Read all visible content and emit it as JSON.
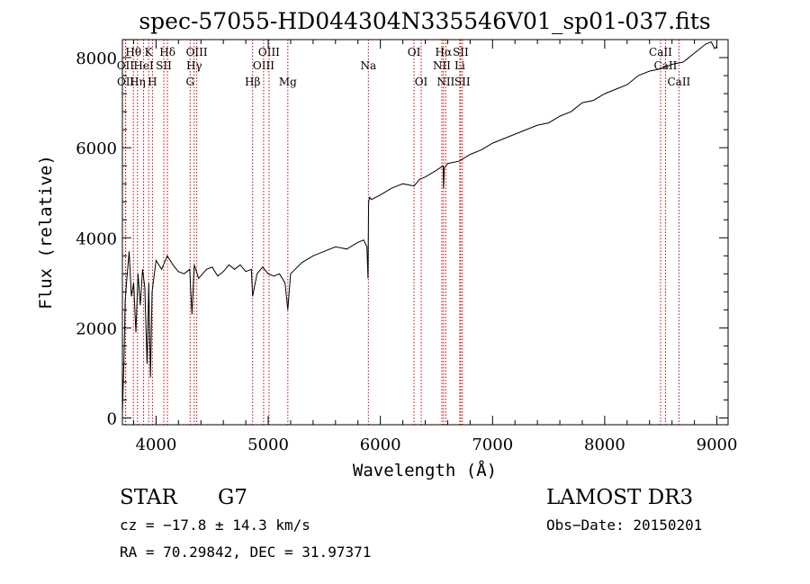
{
  "chart_data": {
    "type": "line",
    "title": "spec-57055-HD044304N335546V01_sp01-037.fits",
    "xlabel": "Wavelength (Å)",
    "ylabel": "Flux (relative)",
    "xlim": [
      3700,
      9100
    ],
    "ylim": [
      -150,
      8400
    ],
    "xticks": [
      4000,
      5000,
      6000,
      7000,
      8000,
      9000
    ],
    "yticks": [
      0,
      2000,
      4000,
      6000,
      8000
    ],
    "series": [
      {
        "name": "flux",
        "x": [
          3700,
          3715,
          3725,
          3740,
          3760,
          3780,
          3800,
          3820,
          3840,
          3860,
          3880,
          3900,
          3920,
          3935,
          3950,
          3965,
          3980,
          4000,
          4050,
          4100,
          4150,
          4200,
          4250,
          4300,
          4320,
          4340,
          4380,
          4450,
          4500,
          4550,
          4600,
          4650,
          4700,
          4750,
          4800,
          4850,
          4861,
          4900,
          4950,
          5000,
          5050,
          5100,
          5150,
          5175,
          5200,
          5300,
          5400,
          5500,
          5600,
          5700,
          5800,
          5850,
          5880,
          5890,
          5895,
          5905,
          5920,
          6000,
          6100,
          6200,
          6300,
          6350,
          6400,
          6500,
          6560,
          6563,
          6570,
          6600,
          6700,
          6800,
          6900,
          7000,
          7100,
          7200,
          7300,
          7400,
          7500,
          7600,
          7700,
          7800,
          7900,
          8000,
          8100,
          8200,
          8300,
          8400,
          8500,
          8600,
          8700,
          8800,
          8900,
          8950,
          8980,
          9000
        ],
        "values": [
          100,
          1400,
          2600,
          3100,
          3700,
          2700,
          3000,
          1900,
          3200,
          2500,
          3300,
          2900,
          1200,
          3000,
          900,
          2800,
          3100,
          3500,
          3300,
          3600,
          3400,
          3250,
          3200,
          3300,
          2300,
          3400,
          3100,
          3300,
          3350,
          3150,
          3250,
          3400,
          3300,
          3400,
          3250,
          3300,
          2700,
          3200,
          3350,
          3200,
          3150,
          3200,
          3000,
          2400,
          3200,
          3450,
          3600,
          3700,
          3800,
          3750,
          3900,
          3950,
          3800,
          3100,
          4800,
          4900,
          4850,
          4950,
          5100,
          5200,
          5150,
          5300,
          5350,
          5500,
          5600,
          5100,
          5550,
          5650,
          5700,
          5850,
          5950,
          6100,
          6200,
          6300,
          6400,
          6500,
          6550,
          6700,
          6800,
          7000,
          7050,
          7200,
          7300,
          7400,
          7600,
          7700,
          7750,
          7850,
          7900,
          8100,
          8300,
          8350,
          8200,
          8250
        ]
      }
    ],
    "lines": [
      {
        "name": "Hθ",
        "x": 3798,
        "row": 1
      },
      {
        "name": "OII",
        "x": 3727,
        "row": 2
      },
      {
        "name": "OII",
        "x": 3729,
        "row": 3
      },
      {
        "name": "Hη",
        "x": 3835,
        "row": 3
      },
      {
        "name": "HeI",
        "x": 3889,
        "row": 2
      },
      {
        "name": "K",
        "x": 3934,
        "row": 1
      },
      {
        "name": "SII",
        "x": 4069,
        "row": 2
      },
      {
        "name": "H",
        "x": 3968,
        "row": 3
      },
      {
        "name": "Hδ",
        "x": 4102,
        "row": 1
      },
      {
        "name": "OIII",
        "x": 4363,
        "row": 1
      },
      {
        "name": "Hγ",
        "x": 4340,
        "row": 2
      },
      {
        "name": "G",
        "x": 4304,
        "row": 3
      },
      {
        "name": "Hβ",
        "x": 4861,
        "row": 3
      },
      {
        "name": "OIII",
        "x": 5007,
        "row": 1
      },
      {
        "name": "OIII",
        "x": 4959,
        "row": 2
      },
      {
        "name": "Mg",
        "x": 5175,
        "row": 3
      },
      {
        "name": "Na",
        "x": 5893,
        "row": 2
      },
      {
        "name": "OI",
        "x": 6300,
        "row": 1
      },
      {
        "name": "OI",
        "x": 6364,
        "row": 3
      },
      {
        "name": "Hα",
        "x": 6563,
        "row": 1
      },
      {
        "name": "SII",
        "x": 6716,
        "row": 1
      },
      {
        "name": "NII",
        "x": 6548,
        "row": 2
      },
      {
        "name": "Li",
        "x": 6708,
        "row": 2
      },
      {
        "name": "NII",
        "x": 6583,
        "row": 3
      },
      {
        "name": "SII",
        "x": 6731,
        "row": 3
      },
      {
        "name": "CaII",
        "x": 8498,
        "row": 1
      },
      {
        "name": "CaII",
        "x": 8542,
        "row": 2
      },
      {
        "name": "CaII",
        "x": 8662,
        "row": 3
      }
    ]
  },
  "info": {
    "object_class": "STAR",
    "subclass": "G7",
    "survey": "LAMOST DR3",
    "redshift": "cz = −17.8 ± 14.3 km/s",
    "obs_date": "Obs−Date: 20150201",
    "coords": "RA =  70.29842, DEC =  31.97371"
  },
  "colors": {
    "line_marker": "#cc0000",
    "spectrum": "#000000",
    "axes": "#000000",
    "background": "#ffffff"
  }
}
